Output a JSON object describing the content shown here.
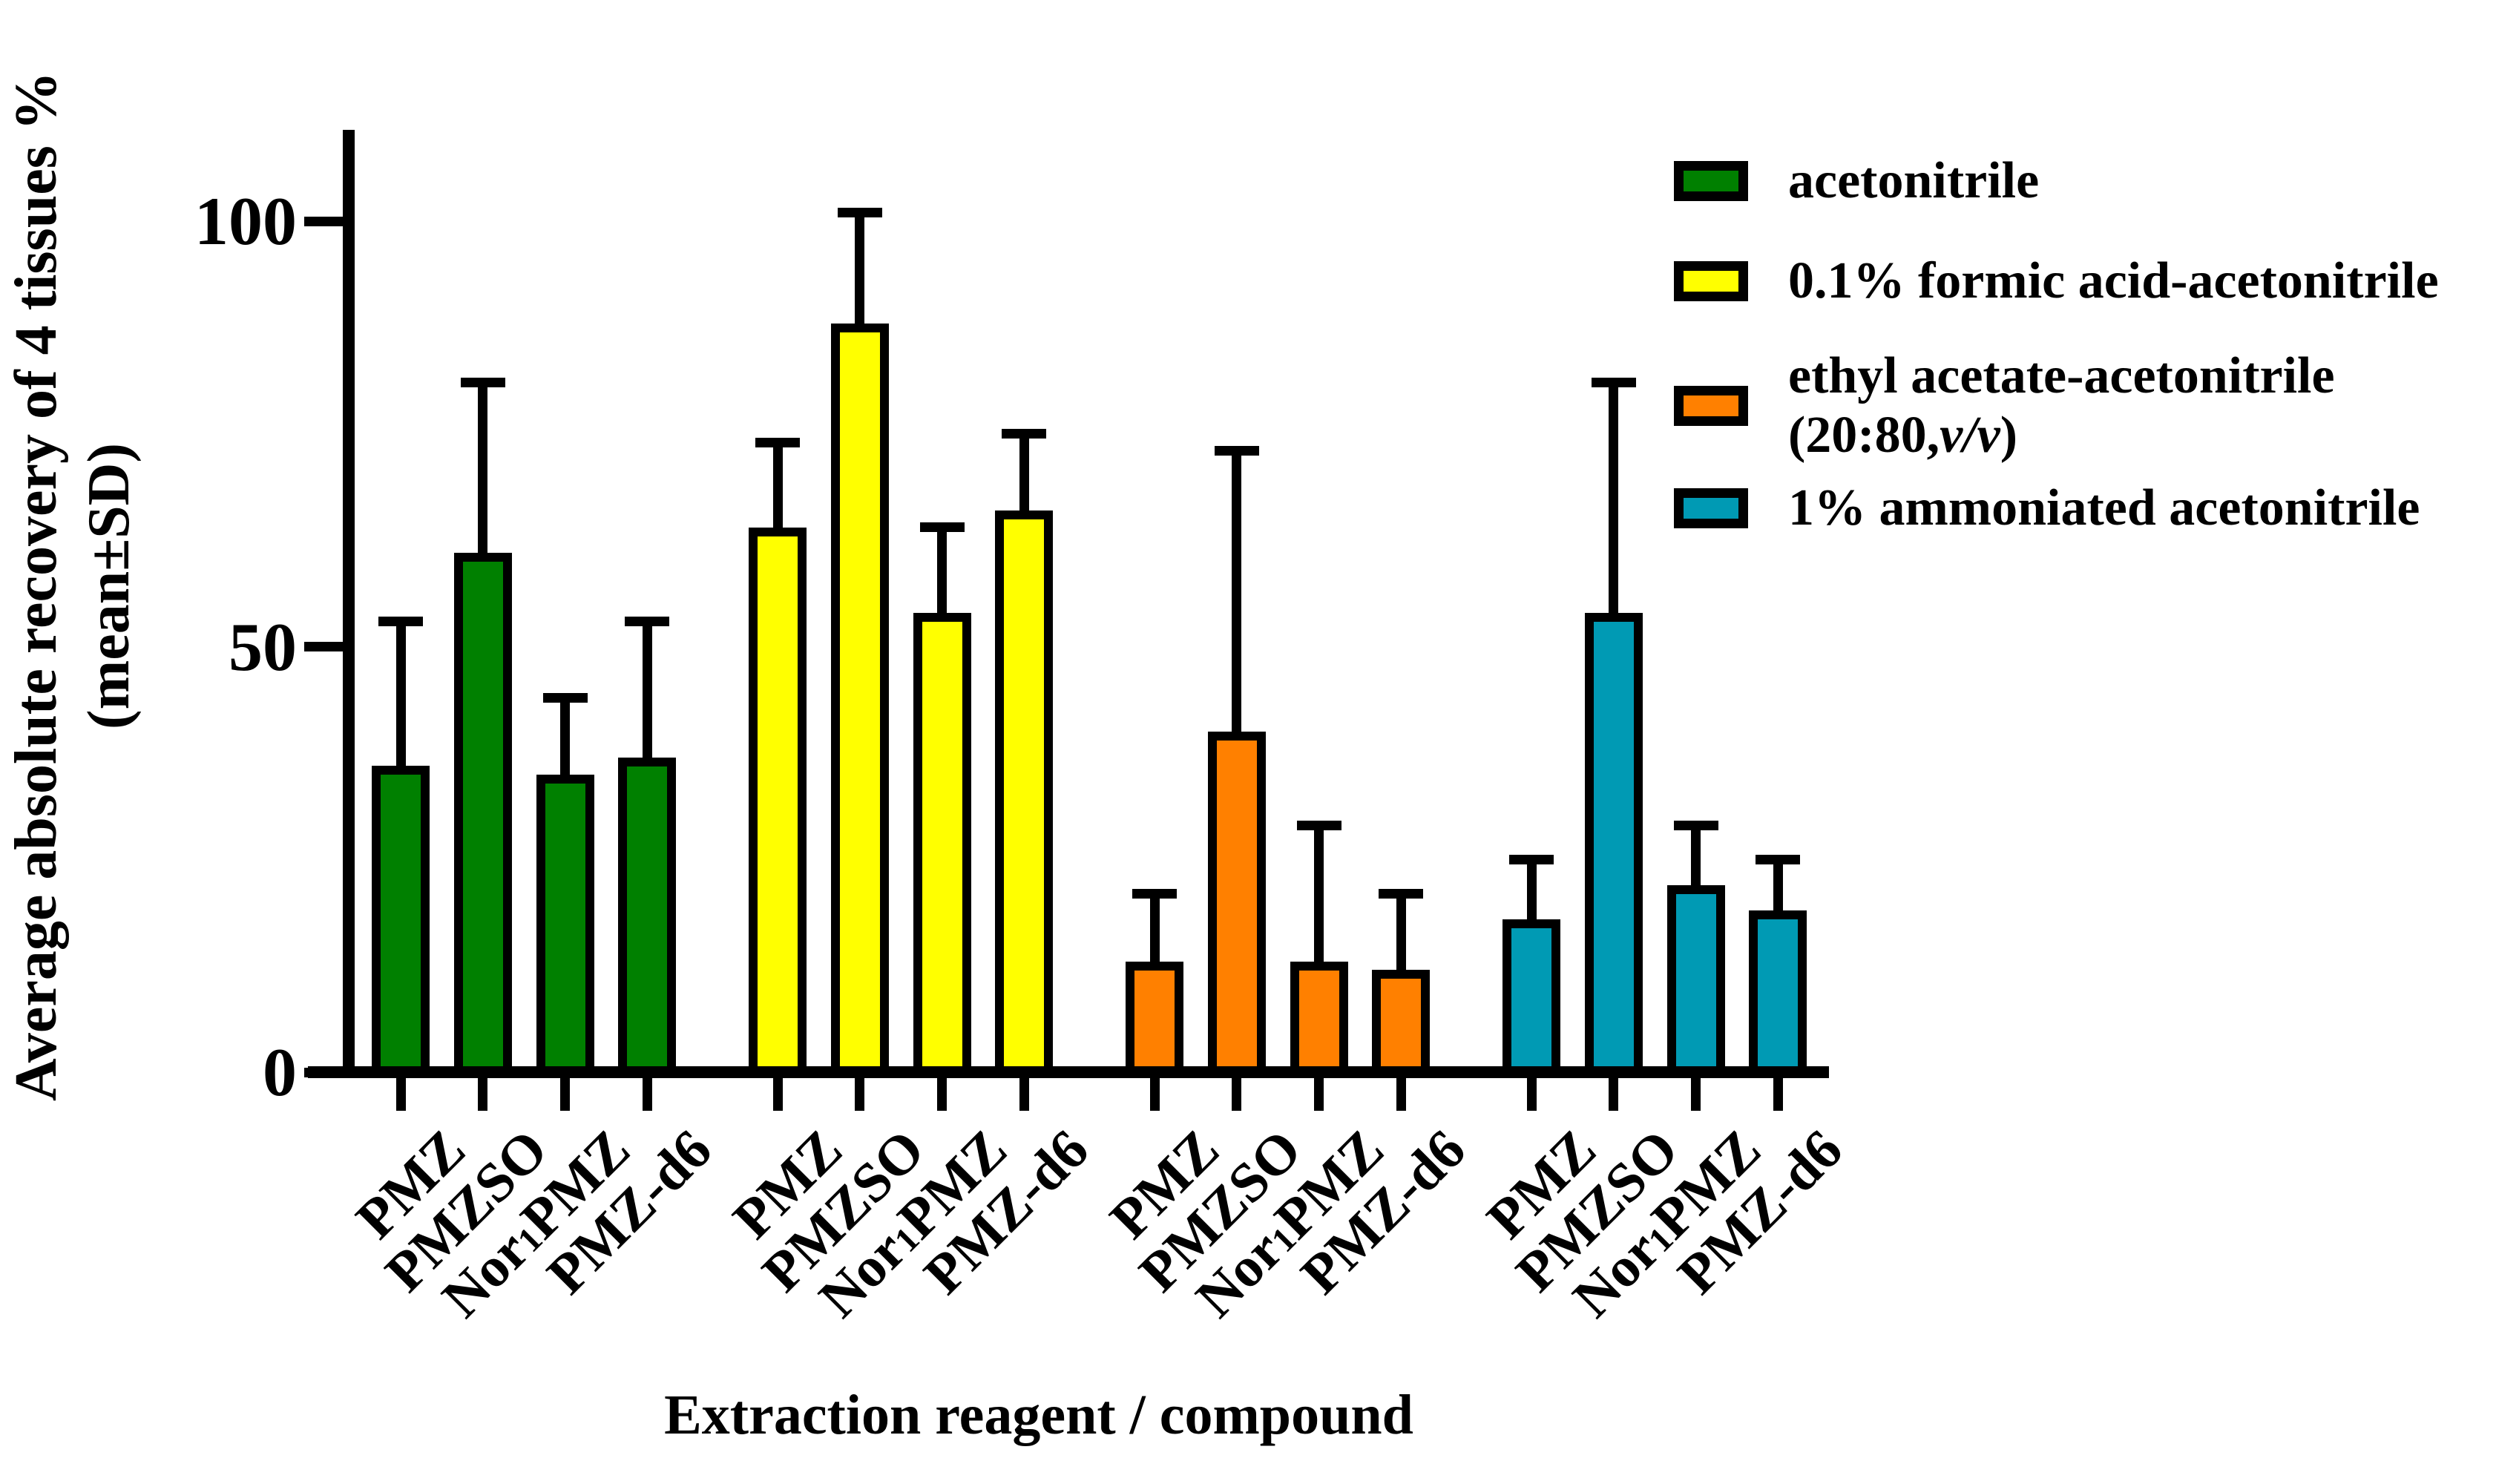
{
  "chart_data": {
    "type": "bar",
    "title": "",
    "xlabel": "Extraction reagent / compound",
    "ylabel_line1": "Average absolute recovery of 4 tissues %",
    "ylabel_line2": "(mean±SD)",
    "ylim": [
      0,
      110
    ],
    "yticks": [
      0,
      50,
      100
    ],
    "grid": "off",
    "legend_position": "top-right",
    "error_bars": "upper SD, black caps",
    "categories": [
      "PMZ",
      "PMZSO",
      "Nor1PMZ",
      "PMZ-d6"
    ],
    "category_parts": [
      [
        {
          "t": "PMZ"
        }
      ],
      [
        {
          "t": "PMZSO"
        }
      ],
      [
        {
          "t": "Nor"
        },
        {
          "t": "1",
          "sub": true
        },
        {
          "t": "PMZ"
        }
      ],
      [
        {
          "t": "PMZ-d6"
        }
      ]
    ],
    "series": [
      {
        "name": "acetonitrile",
        "color": "#008000",
        "values": [
          36,
          61,
          35,
          37
        ],
        "sd": [
          17,
          20,
          9,
          16
        ],
        "legend_lines": [
          [
            {
              "t": "acetonitrile"
            }
          ]
        ]
      },
      {
        "name": "0.1% formic acid-acetonitrile",
        "color": "#FFFF00",
        "values": [
          64,
          88,
          54,
          66
        ],
        "sd": [
          10,
          13,
          10,
          9
        ],
        "legend_lines": [
          [
            {
              "t": "0.1% formic acid-acetonitrile"
            }
          ]
        ]
      },
      {
        "name": "ethyl acetate-acetonitrile (20:80,v/v)",
        "color": "#FF8000",
        "values": [
          13,
          40,
          13,
          12
        ],
        "sd": [
          8,
          33,
          16,
          9
        ],
        "legend_lines": [
          [
            {
              "t": "ethyl acetate-acetonitrile"
            }
          ],
          [
            {
              "t": "(20:80,"
            },
            {
              "t": "v/v",
              "i": true
            },
            {
              "t": ")"
            }
          ]
        ]
      },
      {
        "name": "1% ammoniated acetonitrile",
        "color": "#009AB4",
        "values": [
          18,
          54,
          22,
          19
        ],
        "sd": [
          7,
          27,
          7,
          6
        ],
        "legend_lines": [
          [
            {
              "t": "1% ammoniated acetonitrile"
            }
          ]
        ]
      }
    ]
  }
}
